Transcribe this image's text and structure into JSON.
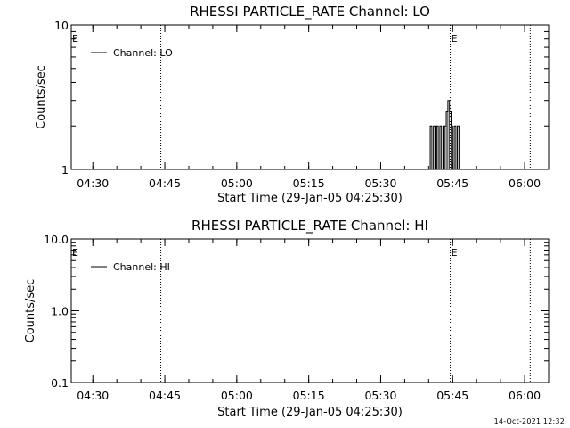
{
  "footer": {
    "timestamp": "14-Oct-2021 12:32"
  },
  "colors": {
    "foreground": "#000000",
    "background": "#ffffff"
  },
  "chart_data": [
    {
      "type": "line",
      "title": "RHESSI PARTICLE_RATE Channel: LO",
      "xlabel": "Start Time (29-Jan-05 04:25:30)",
      "ylabel": "Counts/sec",
      "yscale": "log",
      "xlim": [
        "04:25:30",
        "06:05:00"
      ],
      "ylim": [
        1,
        10
      ],
      "x_ticks": [
        "04:30",
        "04:45",
        "05:00",
        "05:15",
        "05:30",
        "05:45",
        "06:00"
      ],
      "y_ticks": [
        "1",
        "10"
      ],
      "event_lines": [
        {
          "time": "04:44:10",
          "label": ""
        },
        {
          "time": "05:44:30",
          "label": "E"
        },
        {
          "time": "06:01:10",
          "label": ""
        }
      ],
      "start_marker": "E",
      "legend_position": "top-left",
      "series": [
        {
          "name": "Channel: LO",
          "x": [
            "05:40:00",
            "05:40:20",
            "05:40:40",
            "05:41:00",
            "05:41:20",
            "05:41:40",
            "05:42:00",
            "05:42:20",
            "05:42:40",
            "05:43:00",
            "05:43:20",
            "05:43:40",
            "05:44:00",
            "05:44:20",
            "05:44:40",
            "05:45:00",
            "05:45:20",
            "05:45:40",
            "05:46:00",
            "05:46:20",
            "05:46:40",
            "05:47:00"
          ],
          "y": [
            1,
            2,
            1,
            2,
            1,
            2,
            1,
            2,
            1,
            2,
            2,
            2.5,
            3,
            2.5,
            2,
            1,
            2,
            1,
            2,
            1,
            1,
            1
          ]
        }
      ]
    },
    {
      "type": "line",
      "title": "RHESSI PARTICLE_RATE Channel: HI",
      "xlabel": "Start Time (29-Jan-05 04:25:30)",
      "ylabel": "Counts/sec",
      "yscale": "log",
      "xlim": [
        "04:25:30",
        "06:05:00"
      ],
      "ylim": [
        0.1,
        10
      ],
      "x_ticks": [
        "04:30",
        "04:45",
        "05:00",
        "05:15",
        "05:30",
        "05:45",
        "06:00"
      ],
      "y_ticks": [
        "0.1",
        "1.0",
        "10.0"
      ],
      "event_lines": [
        {
          "time": "04:44:10",
          "label": ""
        },
        {
          "time": "05:44:30",
          "label": "E"
        },
        {
          "time": "06:01:10",
          "label": ""
        }
      ],
      "start_marker": "E",
      "legend_position": "top-left",
      "series": [
        {
          "name": "Channel: HI",
          "x": [],
          "y": []
        }
      ]
    }
  ]
}
